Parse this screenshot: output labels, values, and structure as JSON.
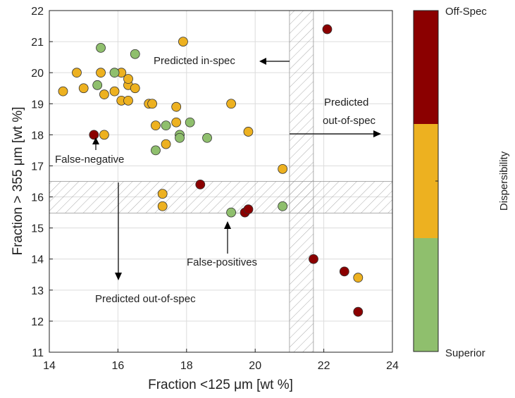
{
  "chart_data": {
    "type": "scatter",
    "title": "",
    "xlabel": "Fraction <125 μm [wt %]",
    "ylabel": "Fraction > 355 μm [wt %]",
    "xlim": [
      14,
      24
    ],
    "ylim": [
      11,
      22
    ],
    "xticks": [
      "14",
      "16",
      "18",
      "20",
      "22",
      "24"
    ],
    "yticks": [
      "11",
      "12",
      "13",
      "14",
      "15",
      "16",
      "17",
      "18",
      "19",
      "20",
      "21",
      "22"
    ],
    "grid": true,
    "series": [
      {
        "name": "Off-Spec",
        "color": "#8b0000",
        "points": [
          [
            22.1,
            21.4
          ],
          [
            15.3,
            18.0
          ],
          [
            18.4,
            16.4
          ],
          [
            19.7,
            15.5
          ],
          [
            19.8,
            15.6
          ],
          [
            21.7,
            14.0
          ],
          [
            22.6,
            13.6
          ],
          [
            23.0,
            12.3
          ]
        ]
      },
      {
        "name": "",
        "color": "#edb120",
        "points": [
          [
            14.4,
            19.4
          ],
          [
            14.8,
            20.0
          ],
          [
            15.0,
            19.5
          ],
          [
            15.5,
            20.0
          ],
          [
            15.6,
            19.3
          ],
          [
            15.6,
            18.0
          ],
          [
            15.9,
            19.4
          ],
          [
            16.1,
            20.0
          ],
          [
            16.1,
            19.1
          ],
          [
            16.3,
            19.6
          ],
          [
            16.3,
            19.8
          ],
          [
            16.3,
            19.1
          ],
          [
            16.5,
            19.5
          ],
          [
            16.9,
            19.0
          ],
          [
            17.0,
            19.0
          ],
          [
            17.1,
            18.3
          ],
          [
            17.3,
            16.1
          ],
          [
            17.3,
            15.7
          ],
          [
            17.4,
            17.7
          ],
          [
            17.7,
            18.4
          ],
          [
            17.7,
            18.9
          ],
          [
            17.9,
            21.0
          ],
          [
            19.3,
            19.0
          ],
          [
            19.8,
            18.1
          ],
          [
            20.8,
            16.9
          ],
          [
            23.0,
            13.4
          ]
        ]
      },
      {
        "name": "Superior",
        "color": "#8fbf6d",
        "points": [
          [
            15.5,
            20.8
          ],
          [
            15.4,
            19.6
          ],
          [
            15.9,
            20.0
          ],
          [
            16.5,
            20.6
          ],
          [
            17.1,
            17.5
          ],
          [
            17.4,
            18.3
          ],
          [
            17.8,
            18.0
          ],
          [
            17.8,
            17.9
          ],
          [
            18.1,
            18.4
          ],
          [
            18.6,
            17.9
          ],
          [
            19.3,
            15.5
          ],
          [
            20.8,
            15.7
          ]
        ]
      }
    ],
    "shaded_bands": [
      {
        "axis": "x",
        "from": 21.0,
        "to": 21.0
      },
      {
        "axis": "y",
        "from": 16.5,
        "to": 16.5
      }
    ],
    "annotations": {
      "pred_in_spec": "Predicted in-spec",
      "pred_out_right_1": "Predicted",
      "pred_out_right_2": "out-of-spec",
      "pred_out_bottom": "Predicted out-of-spec",
      "false_negative": "False-negative",
      "false_positives": "False-positives"
    },
    "colorbar": {
      "title": "Dispersibility",
      "top_label": "Off-Spec",
      "bottom_label": "Superior",
      "colors": [
        "#8b0000",
        "#edb120",
        "#8fbf6d"
      ]
    }
  }
}
